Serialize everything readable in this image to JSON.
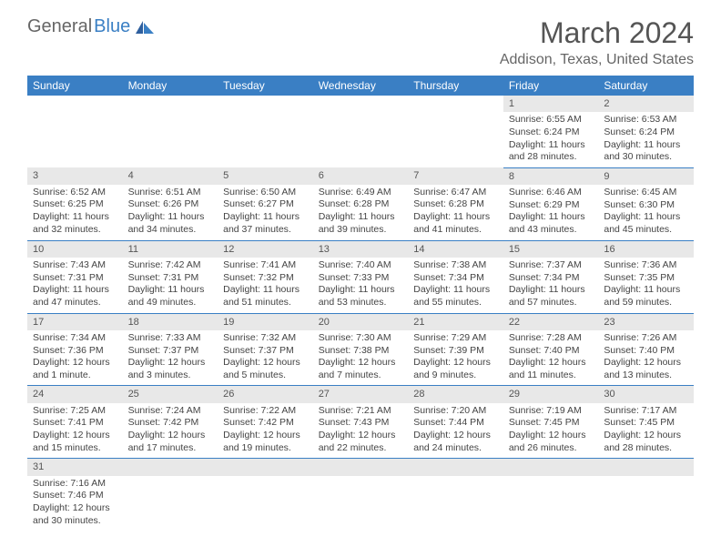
{
  "logo": {
    "part1": "General",
    "part2": "Blue"
  },
  "title": "March 2024",
  "location": "Addison, Texas, United States",
  "colors": {
    "header_bg": "#3a7fc4",
    "header_text": "#ffffff",
    "daynum_bg": "#e8e8e8",
    "text": "#444444",
    "border": "#3a7fc4",
    "logo_gray": "#666666",
    "logo_blue": "#3a7fc4"
  },
  "weekdays": [
    "Sunday",
    "Monday",
    "Tuesday",
    "Wednesday",
    "Thursday",
    "Friday",
    "Saturday"
  ],
  "month_start_weekday": 5,
  "days": [
    {
      "n": 1,
      "sunrise": "6:55 AM",
      "sunset": "6:24 PM",
      "daylight": "11 hours and 28 minutes."
    },
    {
      "n": 2,
      "sunrise": "6:53 AM",
      "sunset": "6:24 PM",
      "daylight": "11 hours and 30 minutes."
    },
    {
      "n": 3,
      "sunrise": "6:52 AM",
      "sunset": "6:25 PM",
      "daylight": "11 hours and 32 minutes."
    },
    {
      "n": 4,
      "sunrise": "6:51 AM",
      "sunset": "6:26 PM",
      "daylight": "11 hours and 34 minutes."
    },
    {
      "n": 5,
      "sunrise": "6:50 AM",
      "sunset": "6:27 PM",
      "daylight": "11 hours and 37 minutes."
    },
    {
      "n": 6,
      "sunrise": "6:49 AM",
      "sunset": "6:28 PM",
      "daylight": "11 hours and 39 minutes."
    },
    {
      "n": 7,
      "sunrise": "6:47 AM",
      "sunset": "6:28 PM",
      "daylight": "11 hours and 41 minutes."
    },
    {
      "n": 8,
      "sunrise": "6:46 AM",
      "sunset": "6:29 PM",
      "daylight": "11 hours and 43 minutes."
    },
    {
      "n": 9,
      "sunrise": "6:45 AM",
      "sunset": "6:30 PM",
      "daylight": "11 hours and 45 minutes."
    },
    {
      "n": 10,
      "sunrise": "7:43 AM",
      "sunset": "7:31 PM",
      "daylight": "11 hours and 47 minutes."
    },
    {
      "n": 11,
      "sunrise": "7:42 AM",
      "sunset": "7:31 PM",
      "daylight": "11 hours and 49 minutes."
    },
    {
      "n": 12,
      "sunrise": "7:41 AM",
      "sunset": "7:32 PM",
      "daylight": "11 hours and 51 minutes."
    },
    {
      "n": 13,
      "sunrise": "7:40 AM",
      "sunset": "7:33 PM",
      "daylight": "11 hours and 53 minutes."
    },
    {
      "n": 14,
      "sunrise": "7:38 AM",
      "sunset": "7:34 PM",
      "daylight": "11 hours and 55 minutes."
    },
    {
      "n": 15,
      "sunrise": "7:37 AM",
      "sunset": "7:34 PM",
      "daylight": "11 hours and 57 minutes."
    },
    {
      "n": 16,
      "sunrise": "7:36 AM",
      "sunset": "7:35 PM",
      "daylight": "11 hours and 59 minutes."
    },
    {
      "n": 17,
      "sunrise": "7:34 AM",
      "sunset": "7:36 PM",
      "daylight": "12 hours and 1 minute."
    },
    {
      "n": 18,
      "sunrise": "7:33 AM",
      "sunset": "7:37 PM",
      "daylight": "12 hours and 3 minutes."
    },
    {
      "n": 19,
      "sunrise": "7:32 AM",
      "sunset": "7:37 PM",
      "daylight": "12 hours and 5 minutes."
    },
    {
      "n": 20,
      "sunrise": "7:30 AM",
      "sunset": "7:38 PM",
      "daylight": "12 hours and 7 minutes."
    },
    {
      "n": 21,
      "sunrise": "7:29 AM",
      "sunset": "7:39 PM",
      "daylight": "12 hours and 9 minutes."
    },
    {
      "n": 22,
      "sunrise": "7:28 AM",
      "sunset": "7:40 PM",
      "daylight": "12 hours and 11 minutes."
    },
    {
      "n": 23,
      "sunrise": "7:26 AM",
      "sunset": "7:40 PM",
      "daylight": "12 hours and 13 minutes."
    },
    {
      "n": 24,
      "sunrise": "7:25 AM",
      "sunset": "7:41 PM",
      "daylight": "12 hours and 15 minutes."
    },
    {
      "n": 25,
      "sunrise": "7:24 AM",
      "sunset": "7:42 PM",
      "daylight": "12 hours and 17 minutes."
    },
    {
      "n": 26,
      "sunrise": "7:22 AM",
      "sunset": "7:42 PM",
      "daylight": "12 hours and 19 minutes."
    },
    {
      "n": 27,
      "sunrise": "7:21 AM",
      "sunset": "7:43 PM",
      "daylight": "12 hours and 22 minutes."
    },
    {
      "n": 28,
      "sunrise": "7:20 AM",
      "sunset": "7:44 PM",
      "daylight": "12 hours and 24 minutes."
    },
    {
      "n": 29,
      "sunrise": "7:19 AM",
      "sunset": "7:45 PM",
      "daylight": "12 hours and 26 minutes."
    },
    {
      "n": 30,
      "sunrise": "7:17 AM",
      "sunset": "7:45 PM",
      "daylight": "12 hours and 28 minutes."
    },
    {
      "n": 31,
      "sunrise": "7:16 AM",
      "sunset": "7:46 PM",
      "daylight": "12 hours and 30 minutes."
    }
  ],
  "labels": {
    "sunrise": "Sunrise:",
    "sunset": "Sunset:",
    "daylight": "Daylight:"
  }
}
